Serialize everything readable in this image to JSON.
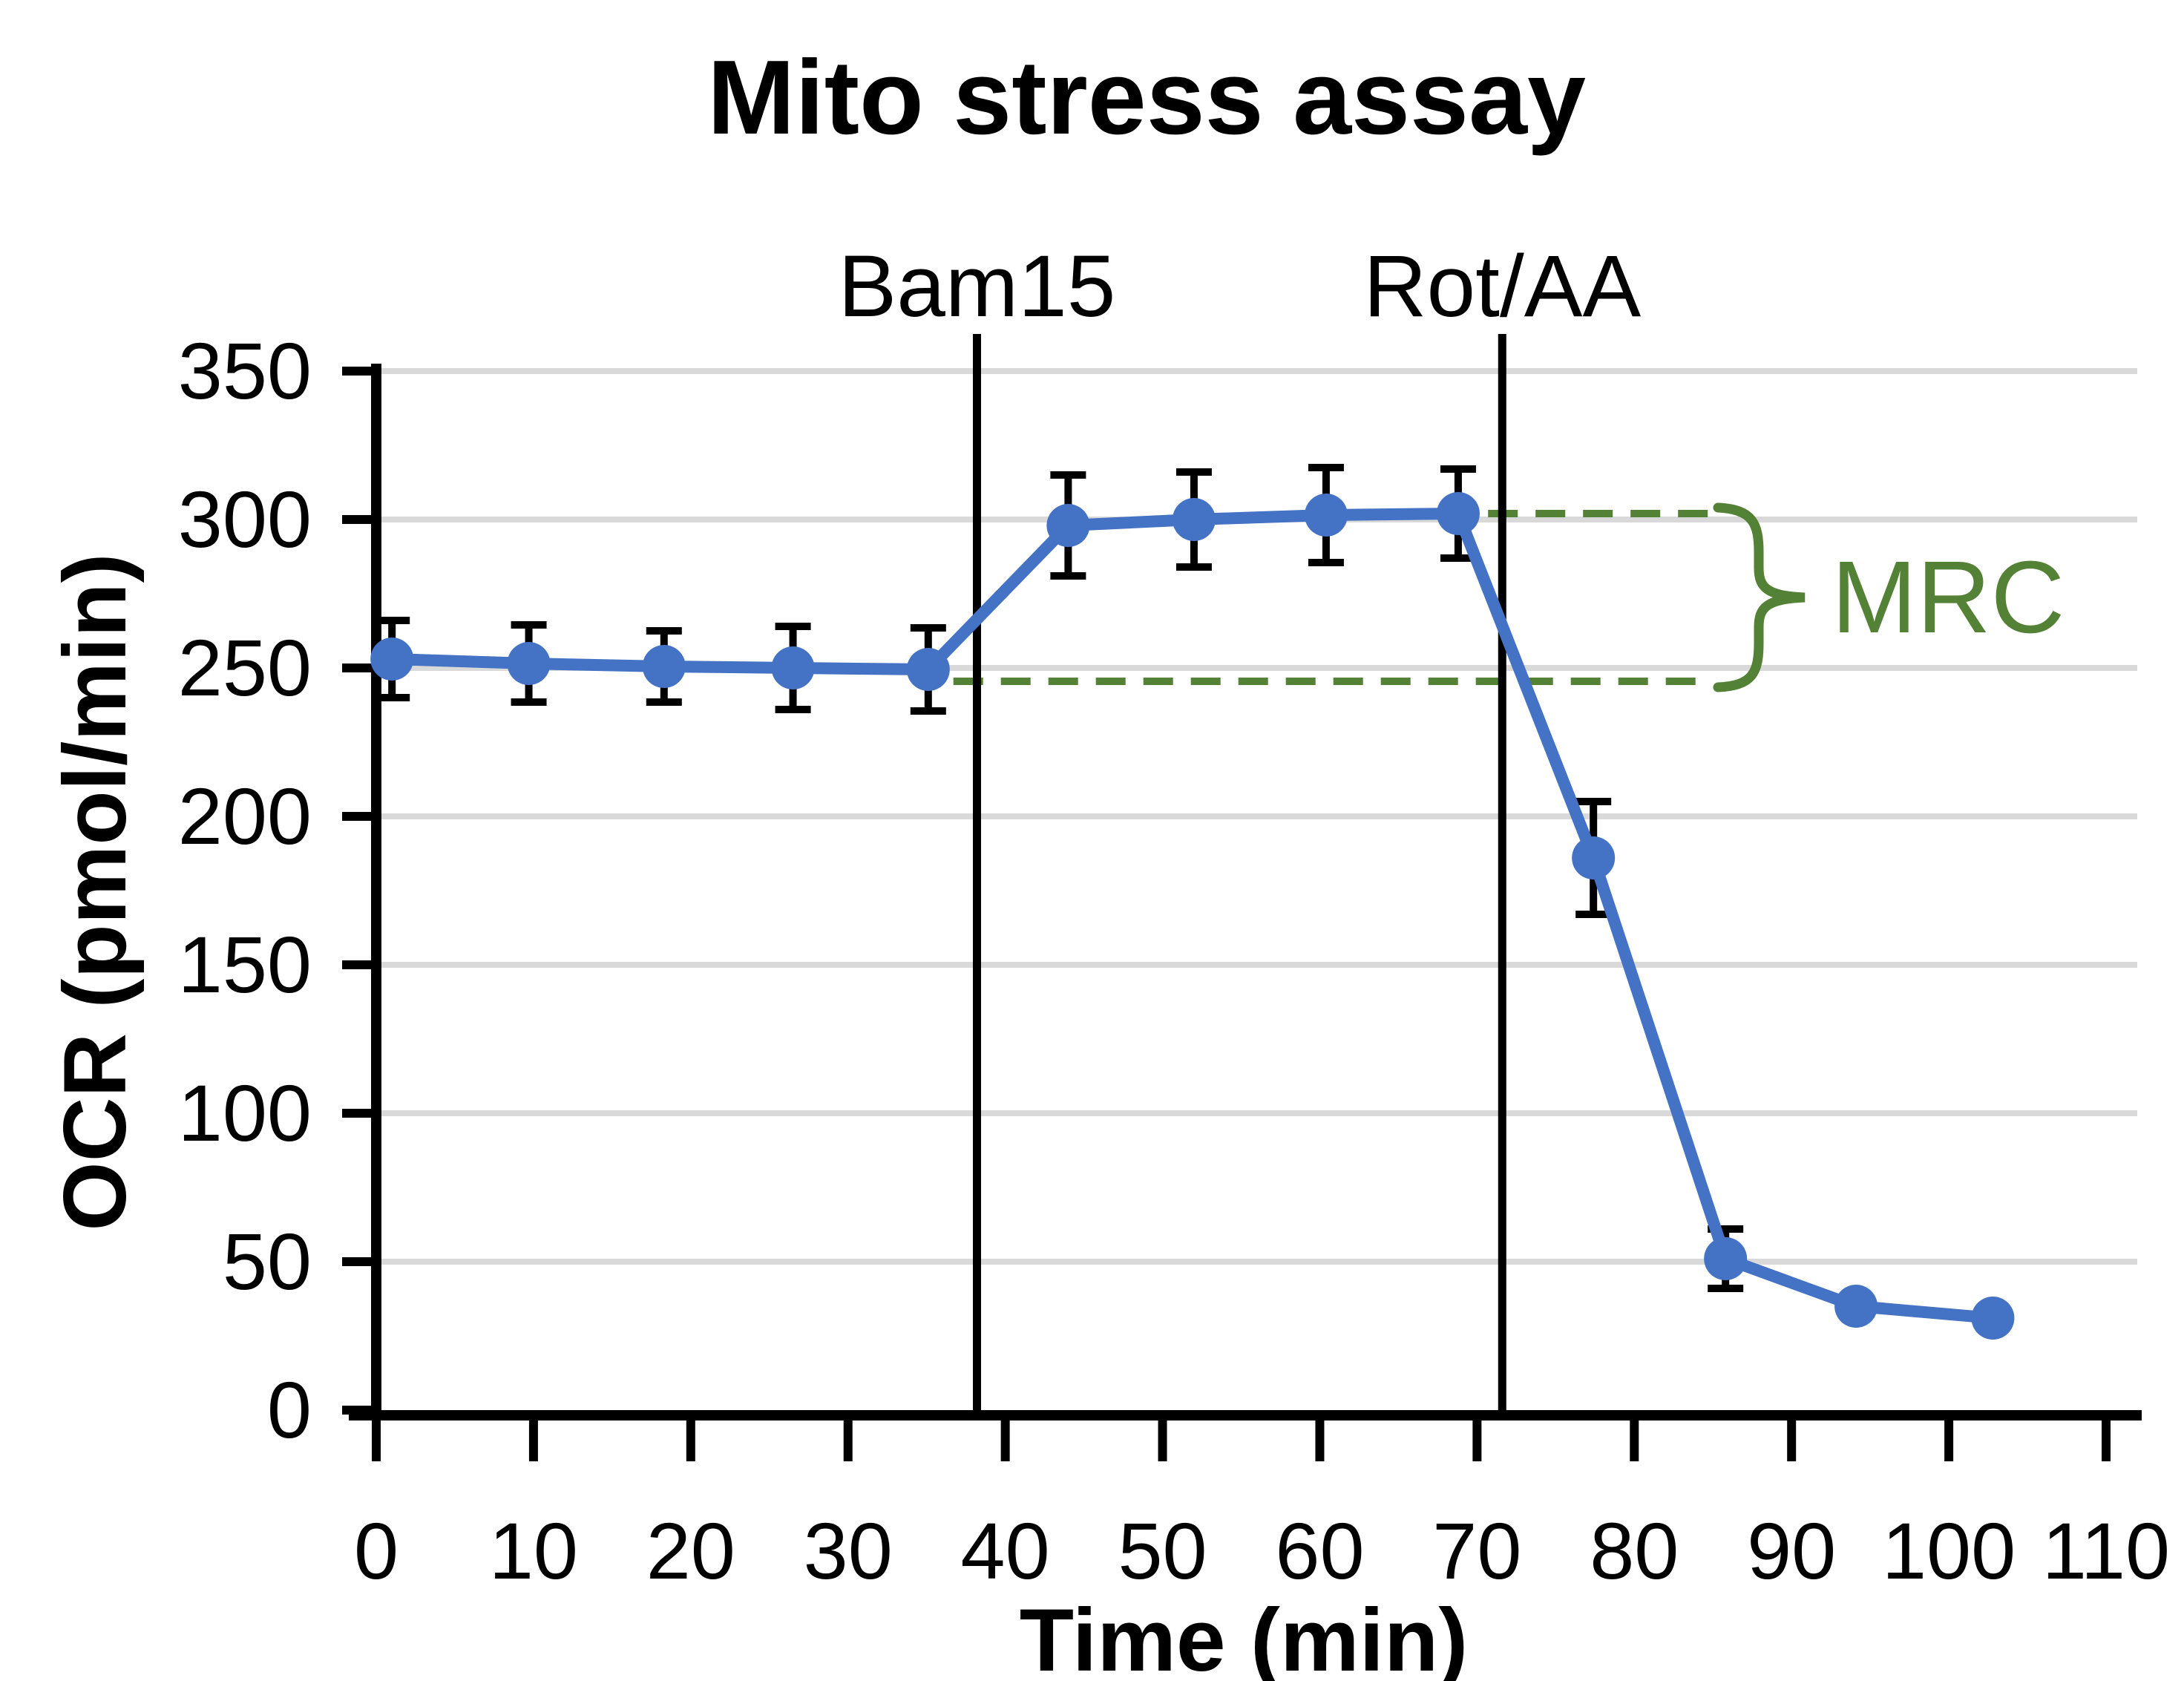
{
  "chart_data": {
    "type": "line",
    "title": "Mito stress assay",
    "xlabel": "Time (min)",
    "ylabel": "OCR (pmol/min)",
    "xlim": [
      0,
      110
    ],
    "ylim": [
      0,
      350
    ],
    "x_ticks": [
      0,
      10,
      20,
      30,
      40,
      50,
      60,
      70,
      80,
      90,
      100,
      110
    ],
    "y_ticks": [
      0,
      50,
      100,
      150,
      200,
      250,
      300,
      350
    ],
    "grid": true,
    "legend": false,
    "series": [
      {
        "name": "OCR",
        "x": [
          1,
          9.7,
          18.3,
          26.5,
          35.1,
          44,
          52,
          60.4,
          68.8,
          77.4,
          85.8,
          94.1,
          102.8
        ],
        "y": [
          253,
          251.5,
          250.5,
          250,
          249.5,
          298,
          300,
          301.5,
          302,
          186,
          51,
          35,
          31
        ],
        "yerr": [
          13,
          13,
          12,
          14,
          14,
          17,
          16,
          16,
          15,
          19,
          10,
          0,
          0
        ]
      }
    ],
    "annotations": {
      "bam15": {
        "label": "Bam15",
        "x": 38.2
      },
      "rot_aa": {
        "label": "Rot/AA",
        "x": 71.6
      },
      "mrc": {
        "label": "MRC",
        "upper_level": 302,
        "lower_level": 245.5,
        "lower_dash_start_x": 36.7,
        "upper_dash_start_x": 70.7,
        "dash_end_x": 85
      }
    },
    "colors": {
      "line": "#4472C4",
      "marker": "#4472C4",
      "annotation_green": "#538135",
      "gridline": "#D9D9D9",
      "axis": "#000000",
      "error_bar": "#000000",
      "background": "#FFFFFF"
    }
  }
}
